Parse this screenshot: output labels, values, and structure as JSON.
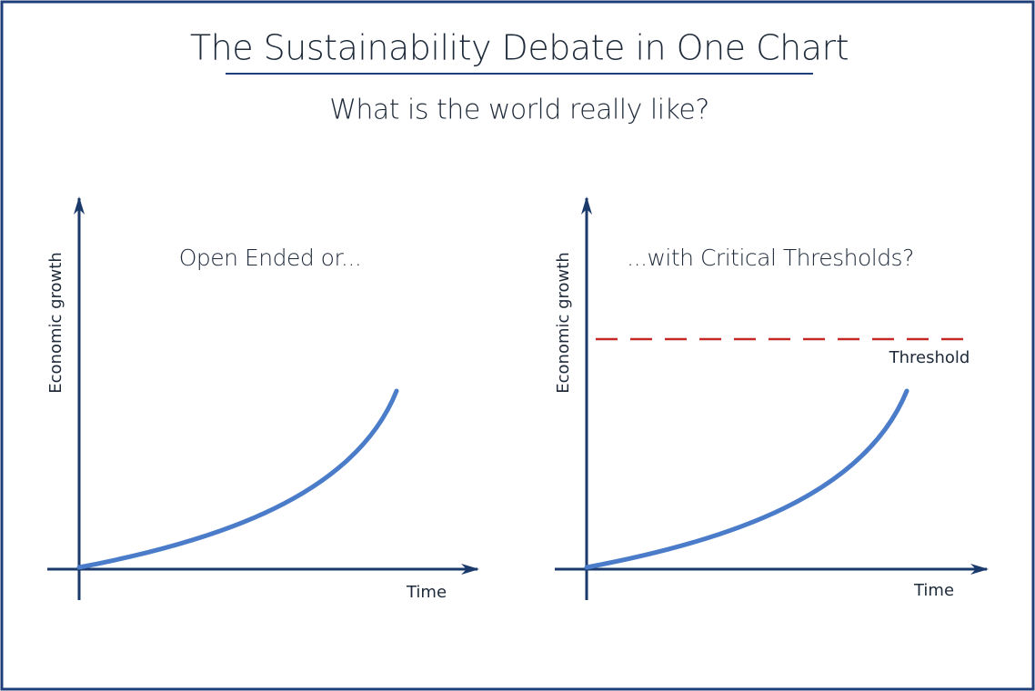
{
  "header": {
    "title": "The Sustainability Debate in One Chart",
    "subtitle": "What is the world really like?"
  },
  "panels": [
    {
      "title": "Open Ended or...",
      "y_label": "Economic growth",
      "x_label": "Time"
    },
    {
      "title": "...with Critical Thresholds?",
      "y_label": "Economic growth",
      "x_label": "Time",
      "threshold_label": "Threshold"
    }
  ]
}
